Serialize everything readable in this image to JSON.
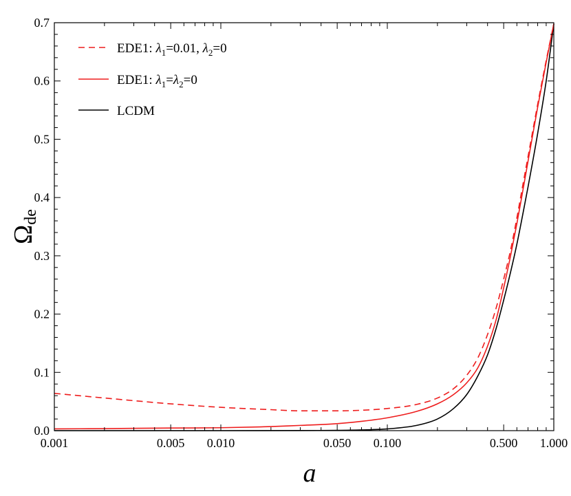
{
  "chart_data": {
    "type": "line",
    "xscale": "log",
    "xlabel": "a",
    "ylabel": "Ω",
    "ylabel_sub": "de",
    "xlim": [
      0.001,
      1.0
    ],
    "ylim": [
      0,
      0.7
    ],
    "xticks": [
      {
        "value": 0.001,
        "label": "0.001"
      },
      {
        "value": 0.005,
        "label": "0.005"
      },
      {
        "value": 0.01,
        "label": "0.010"
      },
      {
        "value": 0.05,
        "label": "0.050"
      },
      {
        "value": 0.1,
        "label": "0.100"
      },
      {
        "value": 0.5,
        "label": "0.500"
      },
      {
        "value": 1.0,
        "label": "1.000"
      }
    ],
    "yticks": [
      {
        "value": 0.0,
        "label": "0.0"
      },
      {
        "value": 0.1,
        "label": "0.1"
      },
      {
        "value": 0.2,
        "label": "0.2"
      },
      {
        "value": 0.3,
        "label": "0.3"
      },
      {
        "value": 0.4,
        "label": "0.4"
      },
      {
        "value": 0.5,
        "label": "0.5"
      },
      {
        "value": 0.6,
        "label": "0.6"
      },
      {
        "value": 0.7,
        "label": "0.7"
      }
    ],
    "grid": false,
    "legend_position": "top-left",
    "series": [
      {
        "name": "EDE1: λ1=0.01, λ2=0",
        "legend_parts": [
          "EDE1: ",
          "λ",
          "1",
          "=0.01, ",
          "λ",
          "2",
          "=0"
        ],
        "color": "#ee1c1c",
        "dash": true,
        "points": [
          [
            0.001,
            0.064
          ],
          [
            0.002,
            0.056
          ],
          [
            0.005,
            0.046
          ],
          [
            0.01,
            0.04
          ],
          [
            0.02,
            0.036
          ],
          [
            0.03,
            0.034
          ],
          [
            0.05,
            0.034
          ],
          [
            0.07,
            0.035
          ],
          [
            0.1,
            0.038
          ],
          [
            0.15,
            0.045
          ],
          [
            0.2,
            0.056
          ],
          [
            0.25,
            0.072
          ],
          [
            0.3,
            0.095
          ],
          [
            0.35,
            0.125
          ],
          [
            0.4,
            0.165
          ],
          [
            0.45,
            0.21
          ],
          [
            0.5,
            0.26
          ],
          [
            0.55,
            0.31
          ],
          [
            0.6,
            0.365
          ],
          [
            0.65,
            0.42
          ],
          [
            0.7,
            0.47
          ],
          [
            0.8,
            0.56
          ],
          [
            0.9,
            0.635
          ],
          [
            1.0,
            0.698
          ]
        ]
      },
      {
        "name": "EDE1: λ1=λ2=0",
        "legend_parts": [
          "EDE1: ",
          "λ",
          "1",
          "=",
          "λ",
          "2",
          "=0"
        ],
        "color": "#ee1c1c",
        "dash": false,
        "points": [
          [
            0.001,
            0.003
          ],
          [
            0.002,
            0.0035
          ],
          [
            0.005,
            0.0045
          ],
          [
            0.01,
            0.005
          ],
          [
            0.02,
            0.007
          ],
          [
            0.03,
            0.009
          ],
          [
            0.05,
            0.012
          ],
          [
            0.07,
            0.016
          ],
          [
            0.1,
            0.022
          ],
          [
            0.15,
            0.033
          ],
          [
            0.2,
            0.046
          ],
          [
            0.25,
            0.062
          ],
          [
            0.3,
            0.082
          ],
          [
            0.35,
            0.108
          ],
          [
            0.4,
            0.145
          ],
          [
            0.45,
            0.19
          ],
          [
            0.5,
            0.245
          ],
          [
            0.55,
            0.3
          ],
          [
            0.6,
            0.355
          ],
          [
            0.65,
            0.41
          ],
          [
            0.7,
            0.462
          ],
          [
            0.8,
            0.555
          ],
          [
            0.9,
            0.632
          ],
          [
            1.0,
            0.698
          ]
        ]
      },
      {
        "name": "LCDM",
        "legend_parts": [
          "LCDM"
        ],
        "color": "#000000",
        "dash": false,
        "points": [
          [
            0.001,
            0.0
          ],
          [
            0.01,
            0.0
          ],
          [
            0.03,
            0.0002
          ],
          [
            0.05,
            0.0005
          ],
          [
            0.07,
            0.0012
          ],
          [
            0.1,
            0.003
          ],
          [
            0.15,
            0.009
          ],
          [
            0.2,
            0.02
          ],
          [
            0.25,
            0.038
          ],
          [
            0.3,
            0.062
          ],
          [
            0.35,
            0.094
          ],
          [
            0.4,
            0.13
          ],
          [
            0.45,
            0.175
          ],
          [
            0.5,
            0.224
          ],
          [
            0.55,
            0.272
          ],
          [
            0.6,
            0.32
          ],
          [
            0.65,
            0.37
          ],
          [
            0.7,
            0.418
          ],
          [
            0.8,
            0.51
          ],
          [
            0.9,
            0.6
          ],
          [
            1.0,
            0.698
          ]
        ]
      }
    ]
  }
}
